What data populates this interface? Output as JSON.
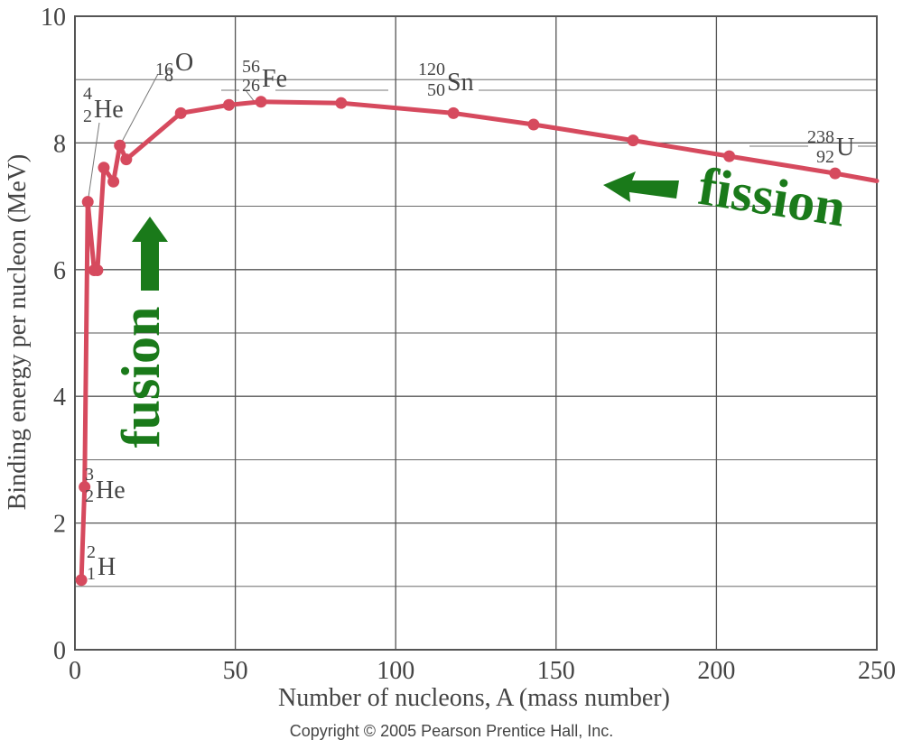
{
  "chart_data": {
    "type": "line",
    "xlabel": "Number of nucleons, A (mass number)",
    "ylabel": "Binding energy per nucleon (MeV)",
    "xlim": [
      0,
      250
    ],
    "ylim": [
      0,
      10
    ],
    "xticks": [
      0,
      50,
      100,
      150,
      200,
      250
    ],
    "yticks": [
      0,
      2,
      4,
      6,
      8,
      10
    ],
    "grid": true,
    "series": [
      {
        "x": [
          2,
          3,
          4,
          6,
          7,
          9,
          12,
          14,
          16,
          33,
          48,
          58,
          83,
          118,
          143,
          174,
          204,
          237
        ],
        "y": [
          1.1,
          2.57,
          7.07,
          5.99,
          5.99,
          7.61,
          7.39,
          7.96,
          7.74,
          8.47,
          8.6,
          8.65,
          8.63,
          8.47,
          8.29,
          8.04,
          7.79,
          7.52
        ]
      }
    ],
    "curve_extends_to": {
      "x": 250,
      "y": 7.4
    },
    "annotations": [
      {
        "symbol": "H",
        "mass": "2",
        "atomic": "1"
      },
      {
        "symbol": "He",
        "mass": "3",
        "atomic": "2"
      },
      {
        "symbol": "He",
        "mass": "4",
        "atomic": "2"
      },
      {
        "symbol": "O",
        "mass": "16",
        "atomic": "8"
      },
      {
        "symbol": "Fe",
        "mass": "56",
        "atomic": "26"
      },
      {
        "symbol": "Sn",
        "mass": "120",
        "atomic": "50"
      },
      {
        "symbol": "U",
        "mass": "238",
        "atomic": "92"
      }
    ],
    "arrows": [
      {
        "label": "fusion",
        "direction": "up"
      },
      {
        "label": "fission",
        "direction": "left"
      }
    ]
  },
  "colors": {
    "curve": "#d64a5e",
    "grid": "#555555",
    "arrow": "#1a7a1a",
    "text": "#444444"
  },
  "copyright": "Copyright © 2005 Pearson Prentice Hall, Inc."
}
